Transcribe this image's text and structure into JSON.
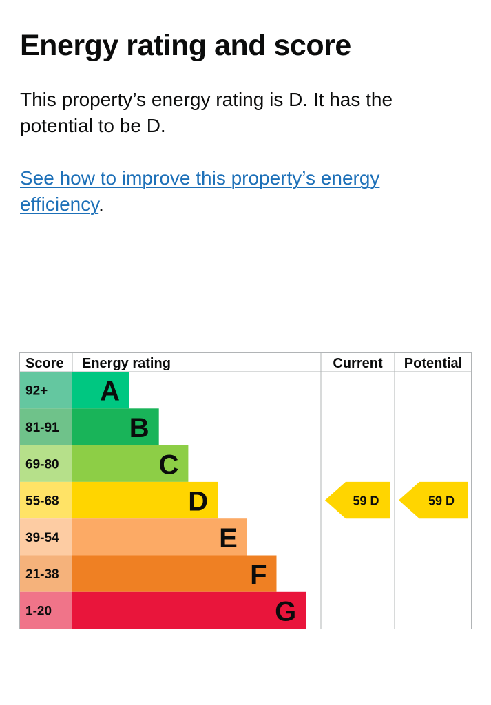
{
  "heading": "Energy rating and score",
  "intro": "This property’s energy rating is D. It has the potential to be D.",
  "improve_link": {
    "text": "See how to improve this property’s energy efficiency",
    "suffix": "."
  },
  "colors": {
    "link": "#1d70b8",
    "text": "#0b0c0c",
    "grid": "#b1b4b6"
  },
  "chart_data": {
    "type": "table",
    "columns": [
      "Score",
      "Energy rating",
      "Current",
      "Potential"
    ],
    "bands": [
      {
        "score": "92+",
        "rating": "A",
        "color": "#00c781",
        "score_bg": "#64c7a0"
      },
      {
        "score": "81-91",
        "rating": "B",
        "color": "#19b459",
        "score_bg": "#6fc28a"
      },
      {
        "score": "69-80",
        "rating": "C",
        "color": "#8dce46",
        "score_bg": "#b6e08a"
      },
      {
        "score": "55-68",
        "rating": "D",
        "color": "#ffd500",
        "score_bg": "#ffe366"
      },
      {
        "score": "39-54",
        "rating": "E",
        "color": "#fcaa65",
        "score_bg": "#fdcca3"
      },
      {
        "score": "21-38",
        "rating": "F",
        "color": "#ef8023",
        "score_bg": "#f5b27b"
      },
      {
        "score": "1-20",
        "rating": "G",
        "color": "#e9153b",
        "score_bg": "#f07489"
      }
    ],
    "current": {
      "score": 59,
      "rating": "D",
      "label": "59  D",
      "band_index": 3
    },
    "potential": {
      "score": 59,
      "rating": "D",
      "label": "59  D",
      "band_index": 3
    }
  }
}
